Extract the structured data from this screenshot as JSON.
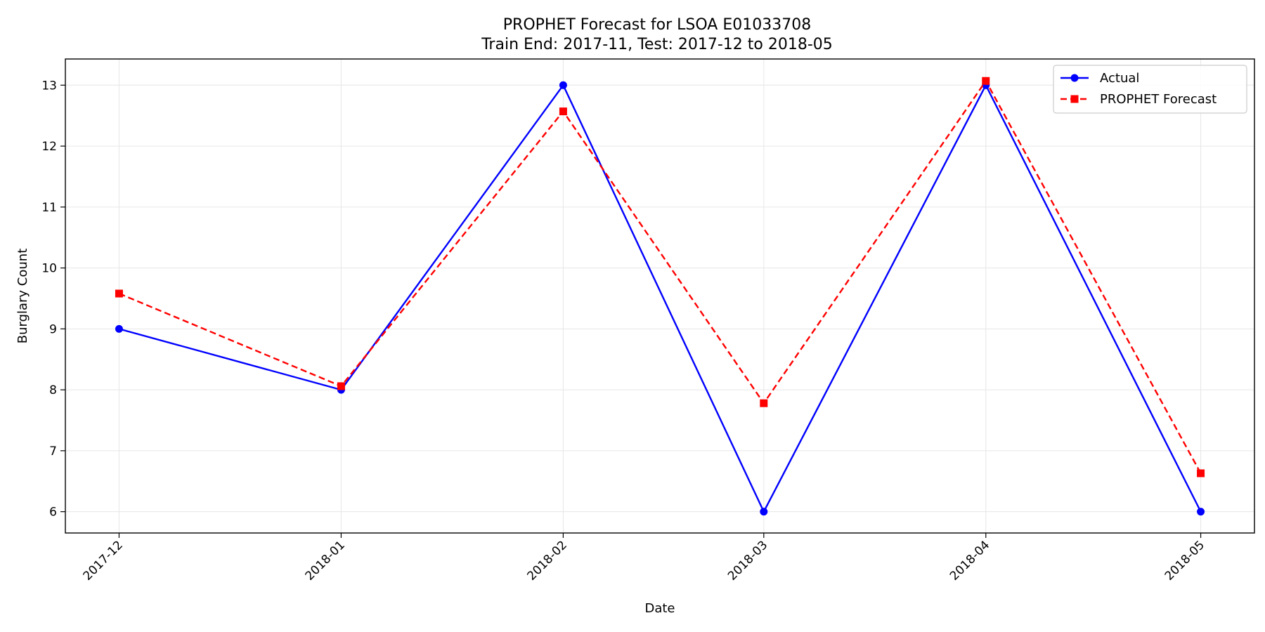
{
  "chart_data": {
    "type": "line",
    "title_line1": "PROPHET Forecast for LSOA E01033708",
    "title_line2": "Train End: 2017-11, Test: 2017-12 to 2018-05",
    "xlabel": "Date",
    "ylabel": "Burglary Count",
    "x": [
      "2017-12",
      "2018-01",
      "2018-02",
      "2018-03",
      "2018-04",
      "2018-05"
    ],
    "x_days": [
      0,
      31,
      62,
      90,
      121,
      151
    ],
    "xlim": [
      -7.5,
      158.5
    ],
    "ylim": [
      5.65,
      13.43
    ],
    "yticks": [
      6,
      7,
      8,
      9,
      10,
      11,
      12,
      13
    ],
    "grid": true,
    "legend_position": "top-right",
    "series": [
      {
        "name": "Actual",
        "values": [
          9,
          8,
          13,
          6,
          13,
          6
        ],
        "color": "#0000ff",
        "line_style": "solid",
        "marker": "circle"
      },
      {
        "name": "PROPHET Forecast",
        "values": [
          9.58,
          8.06,
          12.57,
          7.78,
          13.07,
          6.63
        ],
        "color": "#ff0000",
        "line_style": "dashed",
        "marker": "square"
      }
    ]
  }
}
